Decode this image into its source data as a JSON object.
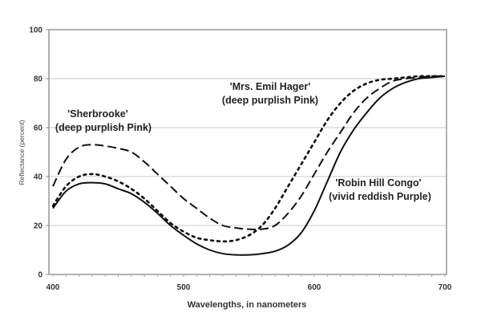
{
  "chart_data": {
    "type": "line",
    "title": "",
    "xlabel": "Wavelengths, in nanometers",
    "ylabel": "Reflectance (percent)",
    "xlim": [
      400,
      700
    ],
    "ylim": [
      0,
      100
    ],
    "x_ticks": [
      400,
      500,
      600,
      700
    ],
    "y_ticks": [
      0,
      20,
      40,
      60,
      80,
      100
    ],
    "grid": "horizontal",
    "legend": "none (inline annotations)",
    "x": [
      400,
      410,
      420,
      430,
      440,
      450,
      460,
      470,
      480,
      490,
      500,
      510,
      520,
      530,
      540,
      550,
      560,
      570,
      580,
      590,
      600,
      610,
      620,
      630,
      640,
      650,
      660,
      670,
      680,
      690,
      700
    ],
    "series": [
      {
        "name": "'Sherbrooke' (deep purplish Pink)",
        "style": "long-dash",
        "values": [
          36,
          47,
          52,
          53,
          52.5,
          51.5,
          50,
          46,
          41,
          36,
          31,
          27,
          23,
          20,
          19,
          18.5,
          18.5,
          20,
          25,
          32,
          41,
          50,
          58,
          66,
          72,
          76,
          79,
          80,
          80.5,
          81,
          81
        ]
      },
      {
        "name": "'Mrs. Emil Hager' (deep purplish Pink)",
        "style": "dotted",
        "values": [
          28,
          36,
          40,
          41,
          40,
          38,
          35,
          31,
          26,
          21,
          17.5,
          15,
          14,
          13.5,
          14,
          16,
          20,
          27,
          36,
          45,
          54,
          63,
          70,
          75,
          78,
          79.5,
          80,
          80.5,
          81,
          81,
          81
        ]
      },
      {
        "name": "'Robin Hill Congo' (vivid reddish Purple)",
        "style": "solid",
        "values": [
          27,
          34,
          37,
          37.5,
          37,
          35,
          33,
          29.5,
          25,
          20,
          16,
          12.5,
          10,
          8.5,
          8,
          8,
          8.5,
          9.5,
          12,
          17,
          26,
          38,
          50,
          59,
          66,
          72,
          76,
          78.5,
          80,
          80.5,
          81
        ]
      }
    ],
    "annotations": [
      {
        "line1": "'Sherbrooke'",
        "line2": "(deep purplish Pink)"
      },
      {
        "line1": "'Mrs. Emil Hager'",
        "line2": "(deep purplish Pink)"
      },
      {
        "line1": "'Robin Hill Congo'",
        "line2": "(vivid reddish Purple)"
      }
    ]
  },
  "labels": {
    "xlabel": "Wavelengths, in nanometers",
    "ylabel": "Reflectance (percent)",
    "sherbrooke_1": "'Sherbrooke'",
    "sherbrooke_2": "(deep purplish Pink)",
    "hager_1": "'Mrs. Emil Hager'",
    "hager_2": "(deep purplish Pink)",
    "congo_1": "'Robin Hill Congo'",
    "congo_2": "(vivid reddish Purple)"
  }
}
